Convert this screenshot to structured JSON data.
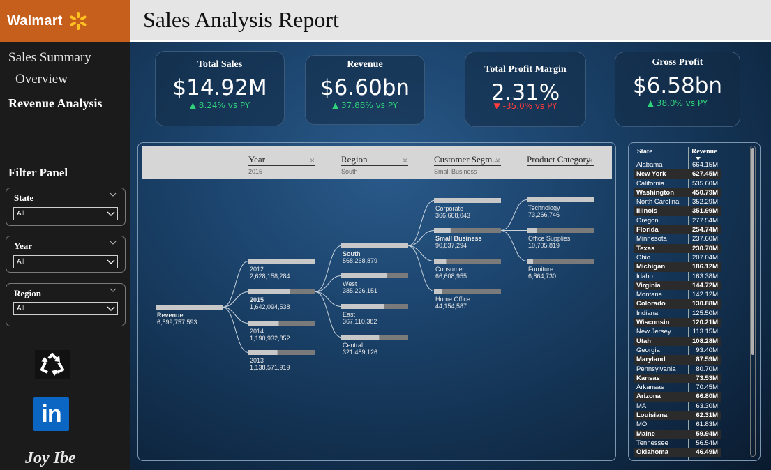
{
  "brand": {
    "name": "Walmart",
    "accent": "#c65f1c",
    "spark_color": "#ffc220"
  },
  "header": {
    "title": "Sales Analysis Report"
  },
  "nav": {
    "summary": "Sales Summary",
    "overview": "Overview",
    "revenue": "Revenue Analysis"
  },
  "filter_panel": {
    "title": "Filter Panel",
    "slicers": [
      {
        "label": "State",
        "value": "All"
      },
      {
        "label": "Year",
        "value": "All"
      },
      {
        "label": "Region",
        "value": "All"
      }
    ]
  },
  "footer": {
    "author": "Joy Ibe",
    "recycle_icon": "recycle-icon",
    "linkedin_icon": "linkedin-icon",
    "linkedin_text": "in"
  },
  "kpis": [
    {
      "label": "Total Sales",
      "value": "$14.92M",
      "delta": "▲ 8.24% vs PY",
      "trend": "up"
    },
    {
      "label": "Revenue",
      "value": "$6.60bn",
      "delta": "▲ 37.88% vs PY",
      "trend": "up"
    },
    {
      "label": "Total Profit Margin",
      "value": "2.31%",
      "delta": "▼ -35.0% vs PY",
      "trend": "down"
    },
    {
      "label": "Gross Profit",
      "value": "$6.58bn",
      "delta": "▲ 38.0% vs PY",
      "trend": "up"
    }
  ],
  "tree": {
    "levels": [
      {
        "title": "Year",
        "selected": "2015"
      },
      {
        "title": "Region",
        "selected": "South"
      },
      {
        "title": "Customer Segm...",
        "selected": "Small Business"
      },
      {
        "title": "Product Category",
        "selected": ""
      }
    ],
    "root": {
      "label": "Revenue",
      "value": "6,599,757,593",
      "amount": 6599757593
    },
    "years": [
      {
        "label": "2012",
        "value": "2,628,158,284",
        "amount": 2628158284,
        "selected": false
      },
      {
        "label": "2015",
        "value": "1,642,094,538",
        "amount": 1642094538,
        "selected": true
      },
      {
        "label": "2014",
        "value": "1,190,932,852",
        "amount": 1190932852,
        "selected": false
      },
      {
        "label": "2013",
        "value": "1,138,571,919",
        "amount": 1138571919,
        "selected": false
      }
    ],
    "regions": [
      {
        "label": "South",
        "value": "568,268,879",
        "amount": 568268879,
        "selected": true
      },
      {
        "label": "West",
        "value": "385,226,151",
        "amount": 385226151,
        "selected": false
      },
      {
        "label": "East",
        "value": "367,110,382",
        "amount": 367110382,
        "selected": false
      },
      {
        "label": "Central",
        "value": "321,489,126",
        "amount": 321489126,
        "selected": false
      }
    ],
    "segments": [
      {
        "label": "Corporate",
        "value": "366,668,043",
        "amount": 366668043,
        "selected": false
      },
      {
        "label": "Small Business",
        "value": "90,837,294",
        "amount": 90837294,
        "selected": true
      },
      {
        "label": "Consumer",
        "value": "66,608,955",
        "amount": 66608955,
        "selected": false
      },
      {
        "label": "Home Office",
        "value": "44,154,587",
        "amount": 44154587,
        "selected": false
      }
    ],
    "categories": [
      {
        "label": "Technology",
        "value": "73,266,746",
        "amount": 73266746,
        "selected": false
      },
      {
        "label": "Office Supplies",
        "value": "10,705,819",
        "amount": 10705819,
        "selected": false
      },
      {
        "label": "Furniture",
        "value": "6,864,730",
        "amount": 6864730,
        "selected": false
      }
    ]
  },
  "state_table": {
    "headers": {
      "state": "State",
      "revenue": "Revenue"
    },
    "rows": [
      {
        "state": "Alabama",
        "revenue": "664.15M"
      },
      {
        "state": "New York",
        "revenue": "627.45M"
      },
      {
        "state": "California",
        "revenue": "535.60M"
      },
      {
        "state": "Washington",
        "revenue": "450.79M"
      },
      {
        "state": "North Carolina",
        "revenue": "352.29M"
      },
      {
        "state": "Illinois",
        "revenue": "351.99M"
      },
      {
        "state": "Oregon",
        "revenue": "277.54M"
      },
      {
        "state": "Florida",
        "revenue": "254.74M"
      },
      {
        "state": "Minnesota",
        "revenue": "237.60M"
      },
      {
        "state": "Texas",
        "revenue": "230.70M"
      },
      {
        "state": "Ohio",
        "revenue": "207.04M"
      },
      {
        "state": "Michigan",
        "revenue": "186.12M"
      },
      {
        "state": "Idaho",
        "revenue": "163.38M"
      },
      {
        "state": "Virginia",
        "revenue": "144.72M"
      },
      {
        "state": "Montana",
        "revenue": "142.12M"
      },
      {
        "state": "Colorado",
        "revenue": "130.88M"
      },
      {
        "state": "Indiana",
        "revenue": "125.50M"
      },
      {
        "state": "Wisconsin",
        "revenue": "120.21M"
      },
      {
        "state": "New Jersey",
        "revenue": "113.15M"
      },
      {
        "state": "Utah",
        "revenue": "108.28M"
      },
      {
        "state": "Georgia",
        "revenue": "93.40M"
      },
      {
        "state": "Maryland",
        "revenue": "87.59M"
      },
      {
        "state": "Pennsylvania",
        "revenue": "80.70M"
      },
      {
        "state": "Kansas",
        "revenue": "73.53M"
      },
      {
        "state": "Arkansas",
        "revenue": "70.45M"
      },
      {
        "state": "Arizona",
        "revenue": "66.80M"
      },
      {
        "state": "MA",
        "revenue": "63.30M"
      },
      {
        "state": "Louisiana",
        "revenue": "62.31M"
      },
      {
        "state": "MO",
        "revenue": "61.83M"
      },
      {
        "state": "Maine",
        "revenue": "59.94M"
      },
      {
        "state": "Tennessee",
        "revenue": "56.54M"
      },
      {
        "state": "Oklahoma",
        "revenue": "46.49M"
      }
    ]
  },
  "colors": {
    "positive": "#2fd17a",
    "negative": "#ff3b3b",
    "bar_fill": "#c8c8c8",
    "bar_track": "#7a7a7a"
  }
}
